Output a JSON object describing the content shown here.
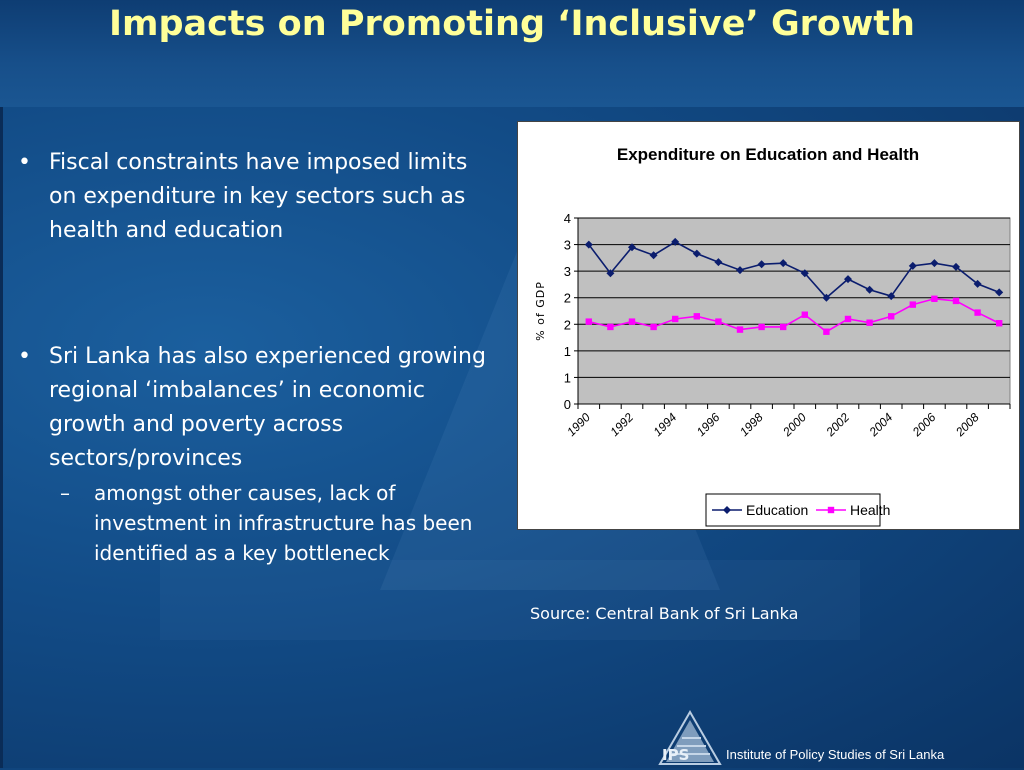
{
  "slide": {
    "title": "Impacts on Promoting ‘Inclusive’ Growth",
    "bullets": [
      {
        "marker": "•",
        "text": "Fiscal constraints have imposed limits on expenditure in key sectors such as health and education",
        "sub": []
      },
      {
        "marker": "•",
        "text": "Sri Lanka has also experienced growing regional ‘imbalances’ in economic growth and poverty across sectors/provinces",
        "sub": [
          {
            "marker": "–",
            "text": "amongst other causes, lack of investment in infrastructure has been identified as a key bottleneck"
          }
        ]
      }
    ],
    "source": "Source: Central Bank of Sri Lanka",
    "footer": "Institute of Policy Studies of Sri Lanka",
    "logo_text": "IPS"
  },
  "chart_data": {
    "type": "line",
    "title": "Expenditure on Education and Health",
    "ylabel": "% of GDP",
    "xlabel": "",
    "ytick_labels": [
      "0",
      "1",
      "1",
      "2",
      "2",
      "3",
      "3",
      "4"
    ],
    "ylim": [
      0,
      3.5
    ],
    "xtick_labels": [
      "1990",
      "1992",
      "1994",
      "1996",
      "1998",
      "2000",
      "2002",
      "2004",
      "2006",
      "2008"
    ],
    "x": [
      1990,
      1991,
      1992,
      1993,
      1994,
      1995,
      1996,
      1997,
      1998,
      1999,
      2000,
      2001,
      2002,
      2003,
      2004,
      2005,
      2006,
      2007,
      2008,
      2009
    ],
    "series": [
      {
        "name": "Education",
        "color": "#0b1d6e",
        "marker": "diamond",
        "values": [
          3.0,
          2.46,
          2.95,
          2.8,
          3.05,
          2.83,
          2.67,
          2.52,
          2.63,
          2.65,
          2.46,
          2.0,
          2.35,
          2.15,
          2.03,
          2.6,
          2.65,
          2.58,
          2.26,
          2.1
        ]
      },
      {
        "name": "Health",
        "color": "#ff00ff",
        "marker": "square",
        "values": [
          1.55,
          1.45,
          1.55,
          1.45,
          1.6,
          1.65,
          1.55,
          1.4,
          1.45,
          1.45,
          1.68,
          1.36,
          1.6,
          1.53,
          1.65,
          1.87,
          1.98,
          1.94,
          1.72,
          1.52
        ]
      }
    ],
    "grid": true,
    "plot_background": "#c0c0c0",
    "legend_position": "bottom"
  }
}
